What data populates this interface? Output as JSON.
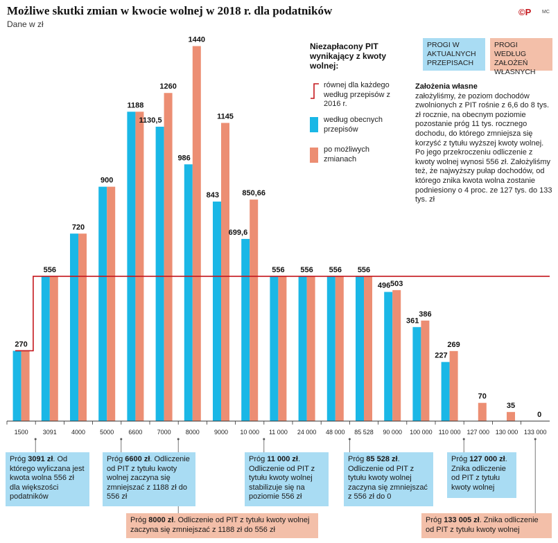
{
  "header": {
    "title": "Możliwe skutki zmian w kwocie wolnej w 2018 r. dla podatników",
    "subtitle": "Dane w zł",
    "logo": "©P",
    "credit": "MC"
  },
  "legend": {
    "title": "Niezapłacony PIT wynikający z kwoty wolnej:",
    "line_label": "równej dla każdego według przepisów z 2016 r.",
    "blue_label": "według obecnych przepisów",
    "salmon_label": "po możliwych zmianach"
  },
  "threshold_boxes": {
    "current": "PROGI W AKTUALNYCH PRZEPISACH",
    "own": "PROGI WEDŁUG ZAŁOŻEŃ WŁASNYCH"
  },
  "assumptions": {
    "title": "Założenia własne",
    "text": "założyliśmy, że poziom dochodów zwolnionych z PIT rośnie z 6,6 do 8 tys. zł rocznie, na obecnym poziomie pozostanie próg 11 tys. rocznego dochodu, do którego zmniejsza się korzyść z tytułu wyższej kwoty wolnej. Po jego przekroczeniu odliczenie z kwoty wolnej wynosi 556 zł. Założyliśmy też, że najwyższy pułap dochodów, od którego znika kwota wolna zostanie podniesiony o 4 proc. ze 127 tys. do 133 tys. zł"
  },
  "notes": [
    {
      "pre": "Próg ",
      "bold": "3091 zł",
      "post": ". Od którego wyliczana jest kwota wolna 556 zł dla większości podatników"
    },
    {
      "pre": "Próg ",
      "bold": "6600 zł",
      "post": ". Odliczenie od PIT z tytułu kwoty wolnej zaczyna się zmniejszać z 1188 zł do 556 zł"
    },
    {
      "pre": "Próg ",
      "bold": "11 000 zł",
      "post": ". Odliczenie od PIT z tytułu kwoty wolnej stabilizuje się na poziomie 556 zł"
    },
    {
      "pre": "Próg ",
      "bold": "85 528 zł",
      "post": ". Odliczenie od PIT z tytułu kwoty wolnej zaczyna się zmniejszać z 556 zł do 0"
    },
    {
      "pre": "Próg ",
      "bold": "127 000 zł",
      "post": ". Znika odliczenie od PIT z tytułu kwoty wolnej"
    },
    {
      "pre": "Próg ",
      "bold": "8000 zł",
      "post": ". Odliczenie od PIT z tytułu kwoty wolnej zaczyna się zmniejszać z 1188 zł do 556 zł"
    },
    {
      "pre": "Próg ",
      "bold": "133 005 zł",
      "post": ". Znika odliczenie od PIT z tytułu kwoty wolnej"
    }
  ],
  "chart_data": {
    "type": "bar",
    "title": "Możliwe skutki zmian w kwocie wolnej w 2018 r. dla podatników",
    "ylabel": "Dane w zł",
    "ylim": [
      0,
      1500
    ],
    "categories": [
      "1500",
      "3091",
      "4000",
      "5000",
      "6600",
      "7000",
      "8000",
      "9000",
      "10 000",
      "11 000",
      "24 000",
      "48 000",
      "85 528",
      "90 000",
      "100 000",
      "110 000",
      "127 000",
      "130 000",
      "133 000"
    ],
    "series": [
      {
        "name": "według obecnych przepisów",
        "color": "#1ab7e6",
        "values": [
          270,
          556,
          720,
          900,
          1188,
          1130.5,
          986,
          843,
          699.6,
          556,
          556,
          556,
          556,
          496,
          361,
          227,
          0,
          0,
          0
        ]
      },
      {
        "name": "po możliwych zmianach",
        "color": "#ec8e73",
        "values": [
          270,
          556,
          720,
          900,
          1188,
          1260,
          1440,
          1145,
          850.66,
          556,
          556,
          556,
          556,
          503,
          386,
          269,
          70,
          35,
          0
        ]
      },
      {
        "name": "równej dla każdego według przepisów z 2016 r.",
        "color": "#c4161c",
        "type": "step-line",
        "values": [
          270,
          556,
          556,
          556,
          556,
          556,
          556,
          556,
          556,
          556,
          556,
          556,
          556,
          556,
          556,
          556,
          556,
          556,
          556
        ]
      }
    ],
    "data_labels": [
      [
        "270",
        null
      ],
      [
        "556",
        null
      ],
      [
        "720",
        null
      ],
      [
        "900",
        null
      ],
      [
        "1188",
        null
      ],
      [
        "1130,5",
        "1260"
      ],
      [
        "986",
        "1440"
      ],
      [
        "843",
        "1145"
      ],
      [
        "699,6",
        "850,66"
      ],
      [
        "556",
        null
      ],
      [
        "556",
        null
      ],
      [
        "556",
        null
      ],
      [
        "556",
        null
      ],
      [
        "496",
        "503"
      ],
      [
        "361",
        "386"
      ],
      [
        "227",
        "269"
      ],
      [
        null,
        "70"
      ],
      [
        null,
        "35"
      ],
      [
        null,
        "0"
      ]
    ]
  }
}
